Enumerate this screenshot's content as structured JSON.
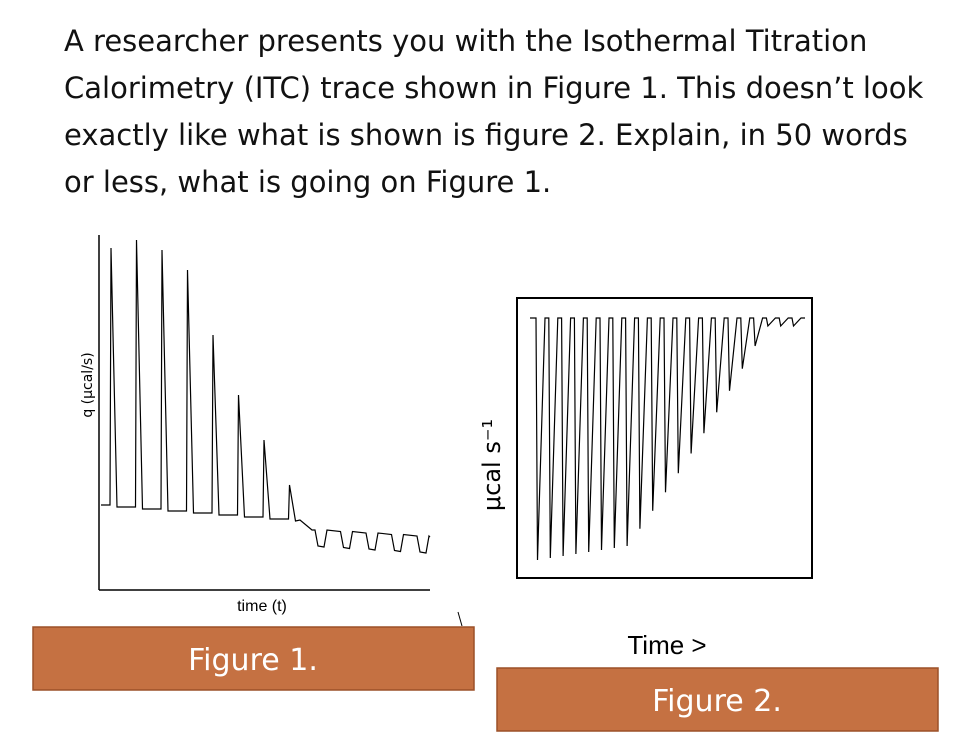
{
  "question": " A researcher presents you with the Isothermal Titration Calorimetry (ITC) trace shown in Figure 1. This doesn’t look exactly like what is shown is figure 2. Explain, in 50 words or less, what is going on Figure 1.",
  "figure1": {
    "y_label": "q (μcal/s)",
    "x_label": "time (t)",
    "caption": "Figure 1."
  },
  "figure2": {
    "y_label": "μcal s⁻¹",
    "x_label": "Time >",
    "caption": "Figure 2."
  }
}
